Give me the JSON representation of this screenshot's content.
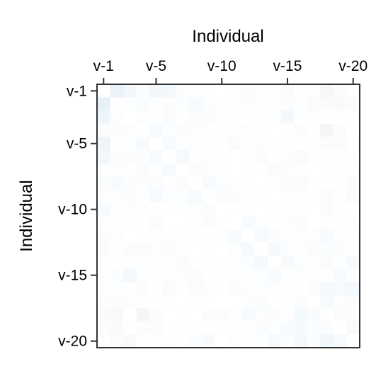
{
  "chart_data": {
    "type": "heatmap",
    "title": "",
    "xlabel": "Individual",
    "ylabel": "Individual",
    "x_axis_position": "top",
    "rows": [
      "v-1",
      "v-2",
      "v-3",
      "v-4",
      "v-5",
      "v-6",
      "v-7",
      "v-8",
      "v-9",
      "v-10",
      "v-11",
      "v-12",
      "v-13",
      "v-14",
      "v-15",
      "v-16",
      "v-17",
      "v-18",
      "v-19",
      "v-20"
    ],
    "columns": [
      "v-1",
      "v-2",
      "v-3",
      "v-4",
      "v-5",
      "v-6",
      "v-7",
      "v-8",
      "v-9",
      "v-10",
      "v-11",
      "v-12",
      "v-13",
      "v-14",
      "v-15",
      "v-16",
      "v-17",
      "v-18",
      "v-19",
      "v-20"
    ],
    "x_tick_labels": [
      {
        "label": "v-1",
        "col": 1
      },
      {
        "label": "v-5",
        "col": 5
      },
      {
        "label": "v-10",
        "col": 10
      },
      {
        "label": "v-15",
        "col": 15
      },
      {
        "label": "v-20",
        "col": 20
      }
    ],
    "y_tick_labels": [
      {
        "label": "v-1",
        "row": 1
      },
      {
        "label": "v-5",
        "row": 5
      },
      {
        "label": "v-10",
        "row": 10
      },
      {
        "label": "v-15",
        "row": 15
      },
      {
        "label": "v-20",
        "row": 20
      }
    ],
    "value_range": [
      -1,
      1
    ],
    "color_scale": {
      "negative": "#808080",
      "zero": "#ffffff",
      "positive": "#4f9bd0"
    },
    "grid": false,
    "legend": "none",
    "values": [
      [
        0.0,
        0.12,
        0.08,
        0.03,
        0.08,
        0.07,
        0.02,
        -0.01,
        0.02,
        0.0,
        0.01,
        -0.02,
        0.01,
        0.02,
        -0.03,
        -0.01,
        0.02,
        -0.06,
        -0.02,
        -0.01
      ],
      [
        0.14,
        0.0,
        0.02,
        0.03,
        0.01,
        -0.02,
        0.02,
        0.04,
        0.02,
        0.01,
        -0.01,
        0.02,
        0.01,
        -0.01,
        0.03,
        0.01,
        -0.02,
        -0.03,
        -0.04,
        -0.03
      ],
      [
        0.09,
        0.02,
        0.0,
        0.02,
        0.01,
        0.03,
        0.01,
        -0.02,
        0.03,
        0.02,
        0.01,
        0.0,
        -0.01,
        0.01,
        0.07,
        0.01,
        0.02,
        0.0,
        -0.01,
        0.01
      ],
      [
        0.03,
        0.03,
        0.02,
        0.0,
        0.05,
        0.02,
        0.03,
        0.02,
        0.01,
        -0.01,
        0.01,
        0.02,
        0.01,
        0.0,
        -0.01,
        -0.02,
        0.01,
        -0.07,
        -0.02,
        0.0
      ],
      [
        0.1,
        0.01,
        0.01,
        0.05,
        0.0,
        0.04,
        0.01,
        0.02,
        0.01,
        -0.01,
        -0.03,
        0.01,
        0.02,
        0.01,
        -0.01,
        0.0,
        0.01,
        -0.02,
        -0.03,
        -0.01
      ],
      [
        0.08,
        -0.02,
        0.03,
        0.02,
        0.04,
        0.0,
        0.05,
        0.01,
        0.02,
        0.01,
        0.0,
        -0.01,
        -0.02,
        0.01,
        0.02,
        -0.03,
        0.01,
        0.0,
        -0.01,
        0.02
      ],
      [
        0.02,
        0.02,
        0.01,
        0.03,
        0.01,
        0.05,
        0.0,
        0.03,
        0.02,
        0.01,
        0.0,
        0.01,
        0.01,
        -0.02,
        0.02,
        -0.01,
        0.0,
        0.01,
        -0.01,
        0.01
      ],
      [
        0.03,
        0.04,
        -0.02,
        0.02,
        0.03,
        0.01,
        0.03,
        0.0,
        0.04,
        0.02,
        -0.01,
        0.01,
        0.0,
        0.01,
        -0.02,
        -0.03,
        0.01,
        0.0,
        -0.01,
        0.03
      ],
      [
        0.01,
        0.02,
        0.03,
        0.01,
        0.05,
        0.02,
        0.02,
        0.04,
        0.0,
        0.03,
        -0.02,
        0.0,
        0.01,
        0.0,
        0.01,
        0.02,
        -0.01,
        -0.02,
        -0.01,
        0.04
      ],
      [
        0.04,
        0.01,
        0.02,
        0.01,
        -0.01,
        0.01,
        0.01,
        0.02,
        0.03,
        0.0,
        0.01,
        0.02,
        0.0,
        0.01,
        -0.01,
        0.01,
        0.0,
        -0.02,
        0.01,
        0.0
      ],
      [
        0.01,
        -0.01,
        0.01,
        0.0,
        -0.02,
        0.0,
        0.0,
        -0.01,
        -0.02,
        0.01,
        0.0,
        0.04,
        0.02,
        0.01,
        0.02,
        0.03,
        0.0,
        -0.01,
        0.01,
        0.02
      ],
      [
        -0.02,
        0.02,
        0.0,
        0.01,
        0.01,
        -0.01,
        0.01,
        0.01,
        0.0,
        0.02,
        0.04,
        0.0,
        0.05,
        0.03,
        0.01,
        0.02,
        0.02,
        0.04,
        -0.01,
        0.01
      ],
      [
        -0.03,
        0.01,
        -0.02,
        -0.03,
        0.02,
        -0.02,
        0.01,
        0.0,
        0.01,
        0.0,
        0.02,
        0.05,
        0.0,
        0.06,
        0.02,
        0.01,
        0.03,
        0.02,
        0.03,
        0.01
      ],
      [
        0.02,
        -0.01,
        0.01,
        0.0,
        0.01,
        0.01,
        -0.02,
        0.01,
        0.0,
        0.01,
        0.01,
        0.03,
        0.06,
        0.0,
        0.04,
        0.02,
        0.01,
        0.03,
        0.01,
        0.05
      ],
      [
        0.01,
        0.03,
        0.07,
        0.01,
        -0.01,
        0.02,
        0.02,
        -0.02,
        0.01,
        -0.01,
        0.02,
        0.01,
        0.02,
        0.04,
        0.0,
        0.02,
        0.01,
        -0.01,
        0.04,
        0.02
      ],
      [
        -0.01,
        0.01,
        0.01,
        -0.02,
        0.0,
        -0.03,
        -0.01,
        -0.03,
        0.02,
        0.01,
        0.03,
        0.02,
        0.01,
        0.02,
        0.02,
        0.0,
        0.03,
        0.06,
        0.05,
        0.07
      ],
      [
        0.02,
        -0.02,
        0.02,
        0.01,
        0.01,
        0.01,
        0.0,
        0.01,
        -0.01,
        0.0,
        0.0,
        0.02,
        0.03,
        0.01,
        0.01,
        0.03,
        0.0,
        0.04,
        0.02,
        0.03
      ],
      [
        -0.03,
        -0.05,
        0.0,
        -0.07,
        -0.02,
        0.0,
        0.01,
        0.0,
        -0.02,
        -0.02,
        -0.01,
        0.04,
        0.02,
        0.03,
        -0.01,
        0.06,
        0.04,
        0.0,
        0.03,
        0.02
      ],
      [
        -0.02,
        -0.04,
        -0.01,
        -0.02,
        -0.03,
        -0.01,
        -0.01,
        -0.01,
        -0.01,
        0.01,
        0.01,
        -0.01,
        0.03,
        0.01,
        0.04,
        0.05,
        0.02,
        0.03,
        0.0,
        0.05
      ],
      [
        -0.01,
        -0.03,
        -0.05,
        0.0,
        -0.01,
        0.02,
        0.01,
        0.03,
        0.04,
        0.0,
        0.02,
        0.01,
        0.01,
        0.05,
        0.02,
        0.07,
        0.03,
        0.08,
        0.05,
        0.0
      ]
    ]
  }
}
